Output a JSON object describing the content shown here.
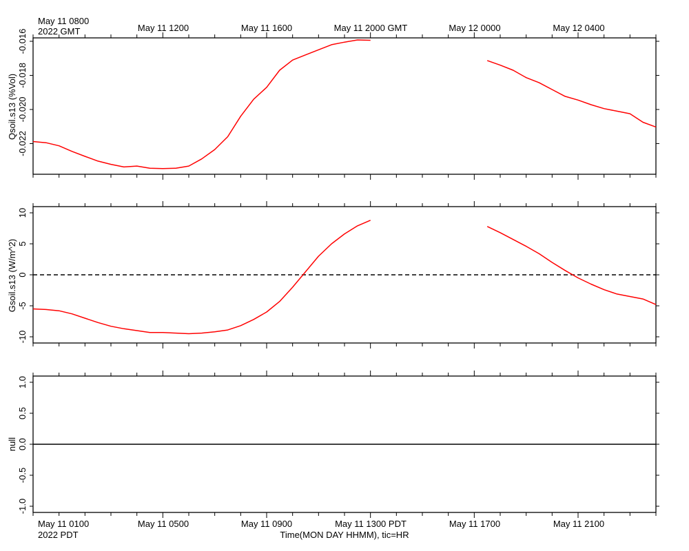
{
  "top_labels": {
    "first_line1": "May 11 0800",
    "first_line2": "2022 GMT",
    "ticks": [
      "May 11 1200",
      "May 11 1600",
      "May 11 2000 GMT",
      "May 12 0000",
      "May 12 0400"
    ]
  },
  "bottom_labels": {
    "first_line1": "May 11 0100",
    "first_line2": "2022 PDT",
    "ticks": [
      "May 11 0500",
      "May 11 0900",
      "May 11 1300 PDT",
      "May 11 1700",
      "May 11 2100"
    ],
    "xlabel": "Time(MON DAY HHMM), tic=HR"
  },
  "colors": {
    "series": "#ff0000",
    "axes": "#000000"
  },
  "chart_data": [
    {
      "type": "line",
      "ylabel": "Qsoil.s13 (%Vol)",
      "xlim": [
        0,
        24
      ],
      "ylim": [
        -0.0238,
        -0.0158
      ],
      "yticks": [
        -0.016,
        -0.018,
        -0.02,
        -0.022
      ],
      "ytick_labels": [
        "-0.016",
        "-0.018",
        "-0.020",
        "-0.022"
      ],
      "x_unit": "hours since May 11 0000 PDT",
      "series": [
        {
          "x": [
            0.0,
            0.5,
            1.0,
            1.5,
            2.0,
            2.5,
            3.0,
            3.5,
            4.0,
            4.5,
            5.0,
            5.5,
            6.0,
            6.5,
            7.0,
            7.5,
            8.0,
            8.5,
            9.0,
            9.5,
            10.0,
            10.5,
            11.0,
            11.5,
            12.0,
            12.5,
            13.0
          ],
          "y": [
            -0.02188,
            -0.02195,
            -0.02213,
            -0.02246,
            -0.02275,
            -0.02303,
            -0.02322,
            -0.02337,
            -0.02332,
            -0.02345,
            -0.02347,
            -0.02345,
            -0.02332,
            -0.0229,
            -0.02235,
            -0.0216,
            -0.0204,
            -0.0194,
            -0.0187,
            -0.0177,
            -0.0171,
            -0.0168,
            -0.0165,
            -0.0162,
            -0.01605,
            -0.01592,
            -0.01594
          ]
        },
        {
          "x": [
            17.5,
            18.0,
            18.5,
            19.0,
            19.5,
            20.0,
            20.5,
            21.0,
            21.5,
            22.0,
            22.5,
            23.0,
            23.5,
            24.0
          ],
          "y": [
            -0.01713,
            -0.0174,
            -0.0177,
            -0.01813,
            -0.01843,
            -0.01883,
            -0.01923,
            -0.01945,
            -0.01972,
            -0.01995,
            -0.0201,
            -0.02025,
            -0.02075,
            -0.02103
          ]
        }
      ]
    },
    {
      "type": "line",
      "ylabel": "Gsoil.s13 (W/m^2)",
      "xlim": [
        0,
        24
      ],
      "ylim": [
        -11,
        11
      ],
      "yticks": [
        10,
        5,
        0,
        -5,
        -10
      ],
      "ytick_labels": [
        "10",
        "5",
        "0",
        "-5",
        "-10"
      ],
      "reference_line": {
        "y": 0,
        "style": "dashed"
      },
      "series": [
        {
          "x": [
            0.0,
            0.5,
            1.0,
            1.5,
            2.0,
            2.5,
            3.0,
            3.5,
            4.0,
            4.5,
            5.0,
            5.5,
            6.0,
            6.5,
            7.0,
            7.5,
            8.0,
            8.5,
            9.0,
            9.5,
            10.0,
            10.5,
            11.0,
            11.5,
            12.0,
            12.5,
            13.0
          ],
          "y": [
            -5.5,
            -5.6,
            -5.8,
            -6.3,
            -7.0,
            -7.7,
            -8.3,
            -8.7,
            -9.0,
            -9.3,
            -9.3,
            -9.4,
            -9.5,
            -9.4,
            -9.2,
            -8.9,
            -8.2,
            -7.2,
            -6.0,
            -4.3,
            -2.0,
            0.5,
            3.0,
            5.0,
            6.6,
            7.9,
            8.8
          ]
        },
        {
          "x": [
            17.5,
            18.0,
            18.5,
            19.0,
            19.5,
            20.0,
            20.5,
            21.0,
            21.5,
            22.0,
            22.5,
            23.0,
            23.5,
            24.0
          ],
          "y": [
            7.8,
            6.8,
            5.7,
            4.6,
            3.4,
            2.0,
            0.7,
            -0.5,
            -1.5,
            -2.4,
            -3.1,
            -3.5,
            -3.9,
            -4.8
          ]
        }
      ]
    },
    {
      "type": "line",
      "ylabel": "null",
      "xlim": [
        0,
        24
      ],
      "ylim": [
        -1.1,
        1.1
      ],
      "yticks": [
        1.0,
        0.5,
        0.0,
        -0.5,
        -1.0
      ],
      "ytick_labels": [
        "1.0",
        "0.5",
        "0.0",
        "-0.5",
        "-1.0"
      ],
      "reference_line": {
        "y": 0,
        "style": "solid"
      },
      "series": []
    }
  ]
}
